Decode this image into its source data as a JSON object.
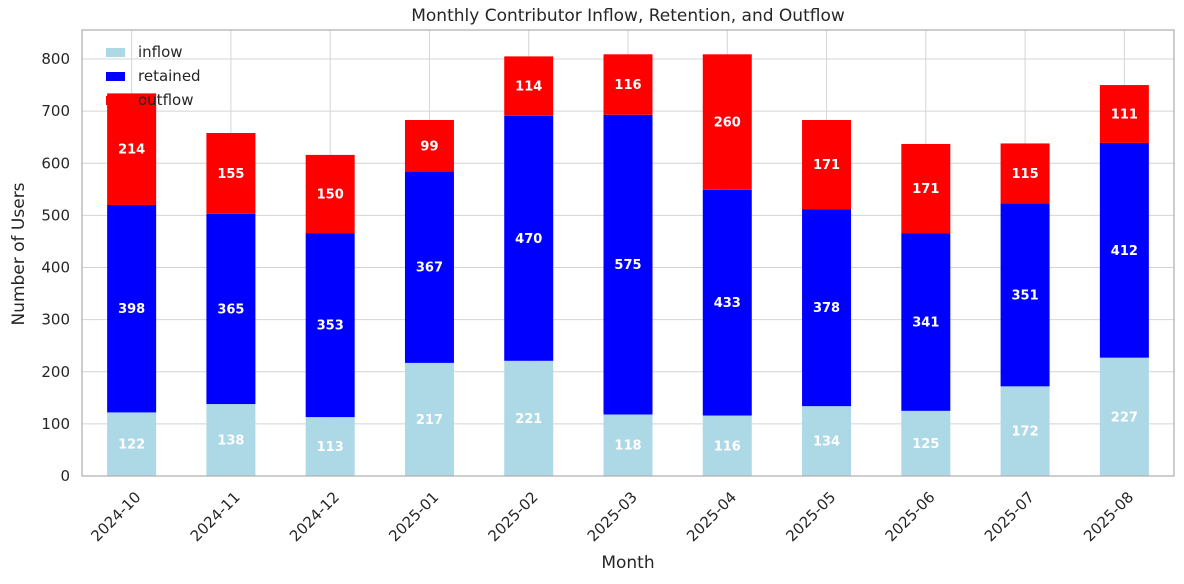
{
  "chart_data": {
    "type": "bar",
    "stacked": true,
    "title": "Monthly Contributor Inflow, Retention, and Outflow",
    "xlabel": "Month",
    "ylabel": "Number of Users",
    "categories": [
      "2024-10",
      "2024-11",
      "2024-12",
      "2025-01",
      "2025-02",
      "2025-03",
      "2025-04",
      "2025-05",
      "2025-06",
      "2025-07",
      "2025-08"
    ],
    "series": [
      {
        "name": "inflow",
        "color": "#ADD8E6",
        "values": [
          122,
          138,
          113,
          217,
          221,
          118,
          116,
          134,
          125,
          172,
          227
        ]
      },
      {
        "name": "retained",
        "color": "#0000FF",
        "values": [
          398,
          365,
          353,
          367,
          470,
          575,
          433,
          378,
          341,
          351,
          412
        ]
      },
      {
        "name": "outflow",
        "color": "#FF0000",
        "values": [
          214,
          155,
          150,
          99,
          114,
          116,
          260,
          171,
          171,
          115,
          111
        ]
      }
    ],
    "yticks": [
      0,
      100,
      200,
      300,
      400,
      500,
      600,
      700,
      800
    ],
    "ylim": [
      0,
      856
    ],
    "grid": true,
    "legend_position": "upper left",
    "xtick_rotation": 45,
    "bar_label_color": "#FFFFFF"
  },
  "style": {
    "grid_color": "#D4D4D4",
    "spine_color": "#ADADAD",
    "text_color": "#262626",
    "background_color": "#FFFFFF"
  }
}
